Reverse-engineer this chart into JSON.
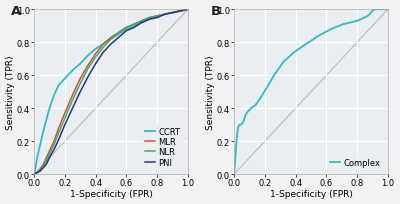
{
  "panel_A": {
    "title_label": "A",
    "xlabel": "1-Specificity (FPR)",
    "ylabel": "Sensitivity (TPR)",
    "xlim": [
      0,
      1
    ],
    "ylim": [
      0,
      1
    ],
    "diagonal_color": "#c0c0c0",
    "curves": {
      "CCRT": {
        "color": "#35b8c8",
        "linewidth": 1.3,
        "fpr": [
          0.0,
          0.01,
          0.02,
          0.04,
          0.06,
          0.08,
          0.1,
          0.13,
          0.16,
          0.2,
          0.25,
          0.3,
          0.35,
          0.4,
          0.45,
          0.5,
          0.55,
          0.6,
          0.65,
          0.7,
          0.75,
          0.8,
          0.85,
          0.9,
          0.95,
          1.0
        ],
        "tpr": [
          0.0,
          0.04,
          0.1,
          0.18,
          0.26,
          0.33,
          0.4,
          0.48,
          0.54,
          0.58,
          0.63,
          0.67,
          0.72,
          0.76,
          0.79,
          0.82,
          0.85,
          0.88,
          0.9,
          0.92,
          0.94,
          0.96,
          0.97,
          0.98,
          0.99,
          1.0
        ]
      },
      "MLR": {
        "color": "#c05840",
        "linewidth": 1.1,
        "fpr": [
          0.0,
          0.02,
          0.04,
          0.06,
          0.08,
          0.1,
          0.13,
          0.16,
          0.2,
          0.25,
          0.3,
          0.35,
          0.4,
          0.45,
          0.5,
          0.55,
          0.6,
          0.65,
          0.7,
          0.75,
          0.8,
          0.85,
          0.9,
          0.95,
          1.0
        ],
        "tpr": [
          0.0,
          0.01,
          0.03,
          0.06,
          0.1,
          0.14,
          0.2,
          0.28,
          0.37,
          0.48,
          0.58,
          0.66,
          0.73,
          0.79,
          0.83,
          0.86,
          0.89,
          0.91,
          0.93,
          0.95,
          0.96,
          0.97,
          0.98,
          0.99,
          1.0
        ]
      },
      "NLR": {
        "color": "#4aaa60",
        "linewidth": 1.1,
        "fpr": [
          0.0,
          0.02,
          0.04,
          0.06,
          0.08,
          0.1,
          0.13,
          0.16,
          0.2,
          0.25,
          0.3,
          0.35,
          0.4,
          0.45,
          0.5,
          0.55,
          0.6,
          0.65,
          0.7,
          0.75,
          0.8,
          0.85,
          0.9,
          0.95,
          1.0
        ],
        "tpr": [
          0.0,
          0.01,
          0.02,
          0.05,
          0.08,
          0.12,
          0.18,
          0.25,
          0.34,
          0.45,
          0.55,
          0.64,
          0.71,
          0.77,
          0.82,
          0.86,
          0.89,
          0.91,
          0.93,
          0.95,
          0.96,
          0.97,
          0.98,
          0.99,
          1.0
        ]
      },
      "PNI": {
        "color": "#2a3580",
        "linewidth": 1.1,
        "fpr": [
          0.0,
          0.02,
          0.04,
          0.06,
          0.08,
          0.1,
          0.13,
          0.16,
          0.2,
          0.25,
          0.3,
          0.35,
          0.4,
          0.45,
          0.5,
          0.55,
          0.6,
          0.65,
          0.7,
          0.75,
          0.8,
          0.85,
          0.9,
          0.95,
          1.0
        ],
        "tpr": [
          0.0,
          0.01,
          0.02,
          0.04,
          0.06,
          0.1,
          0.15,
          0.21,
          0.3,
          0.4,
          0.5,
          0.59,
          0.67,
          0.74,
          0.79,
          0.83,
          0.87,
          0.89,
          0.92,
          0.94,
          0.95,
          0.97,
          0.98,
          0.99,
          1.0
        ]
      }
    },
    "xticks": [
      0.0,
      0.2,
      0.4,
      0.6,
      0.8,
      1.0
    ],
    "yticks": [
      0.0,
      0.2,
      0.4,
      0.6,
      0.8,
      1.0
    ]
  },
  "panel_B": {
    "title_label": "B",
    "xlabel": "1-Specificity (FPR)",
    "ylabel": "Sensitivity (TPR)",
    "xlim": [
      0,
      1
    ],
    "ylim": [
      0,
      1
    ],
    "diagonal_color": "#c0c0c0",
    "curves": {
      "Complex": {
        "color": "#35b8c8",
        "linewidth": 1.3,
        "fpr": [
          0.0,
          0.003,
          0.007,
          0.012,
          0.018,
          0.025,
          0.035,
          0.045,
          0.055,
          0.065,
          0.075,
          0.09,
          0.11,
          0.14,
          0.17,
          0.21,
          0.26,
          0.32,
          0.39,
          0.47,
          0.55,
          0.63,
          0.71,
          0.8,
          0.87,
          0.91,
          0.95,
          1.0
        ],
        "tpr": [
          0.0,
          0.03,
          0.08,
          0.15,
          0.22,
          0.28,
          0.3,
          0.3,
          0.31,
          0.33,
          0.36,
          0.38,
          0.4,
          0.42,
          0.46,
          0.52,
          0.6,
          0.68,
          0.74,
          0.79,
          0.84,
          0.88,
          0.91,
          0.93,
          0.96,
          1.0,
          1.0,
          1.0
        ]
      }
    },
    "xticks": [
      0.0,
      0.2,
      0.4,
      0.6,
      0.8,
      1.0
    ],
    "yticks": [
      0.0,
      0.2,
      0.4,
      0.6,
      0.8,
      1.0
    ]
  },
  "background_color": "#f2f2f2",
  "grid_color": "#ffffff",
  "axes_bg_color": "#eaeef2",
  "font_size": 6.5,
  "label_font_size": 6.5,
  "tick_font_size": 6
}
